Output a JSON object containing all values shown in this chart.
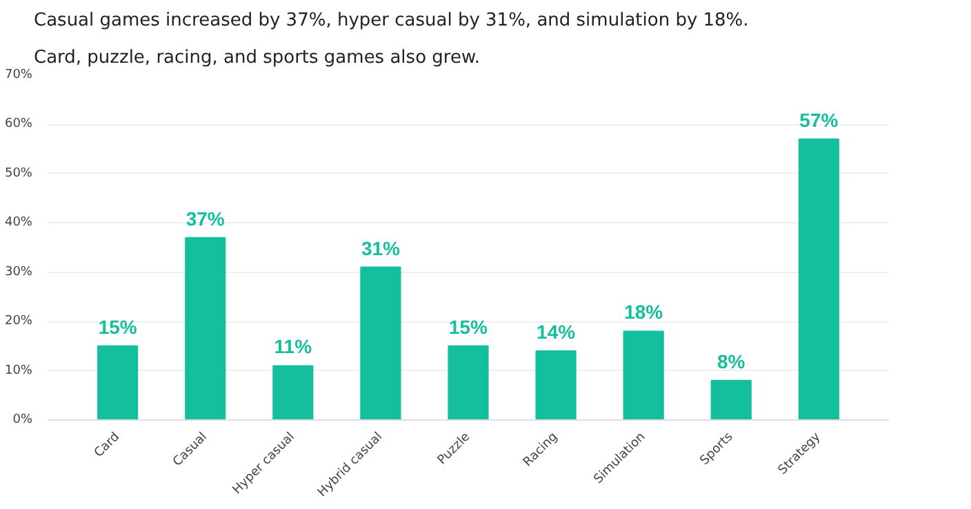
{
  "chart_data": {
    "type": "bar",
    "title": "Casual games increased by 37%, hyper casual by 31%, and simulation by 18%.",
    "subtitle": "Card, puzzle, racing, and sports games also grew.",
    "categories": [
      "Card",
      "Casual",
      "Hyper casual",
      "Hybrid casual",
      "Puzzle",
      "Racing",
      "Simulation",
      "Sports",
      "Strategy"
    ],
    "values": [
      15,
      37,
      11,
      31,
      15,
      14,
      18,
      8,
      57
    ],
    "value_labels": [
      "15%",
      "37%",
      "11%",
      "31%",
      "15%",
      "14%",
      "18%",
      "8%",
      "57%"
    ],
    "color": "#13bf9c",
    "ylim": [
      0,
      70
    ],
    "yticks": [
      {
        "value": 0,
        "label": "0%"
      },
      {
        "value": 10,
        "label": "10%"
      },
      {
        "value": 20,
        "label": "20%"
      },
      {
        "value": 30,
        "label": "30%"
      },
      {
        "value": 40,
        "label": "40%"
      },
      {
        "value": 50,
        "label": "50%"
      },
      {
        "value": 60,
        "label": "60%"
      },
      {
        "value": 70,
        "label": "70%"
      }
    ],
    "grid": "y"
  }
}
